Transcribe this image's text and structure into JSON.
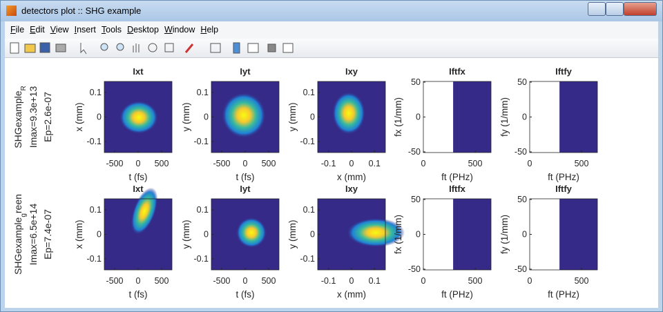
{
  "window": {
    "title": "detectors plot :: SHG example"
  },
  "menu": [
    "File",
    "Edit",
    "View",
    "Insert",
    "Tools",
    "Desktop",
    "Window",
    "Help"
  ],
  "rows": [
    {
      "label": {
        "main": "SHGexample",
        "sub": "R",
        "lines": [
          "Imax=9.3e+13",
          "Ep=2.6e-07"
        ]
      },
      "panels": [
        {
          "title": "Ixt",
          "xlabel": "t (fs)",
          "ylabel": "x (mm)",
          "xlim": [
            -720,
            720
          ],
          "ylim": [
            -0.145,
            0.145
          ],
          "xticks": [
            -500,
            0,
            500
          ],
          "yticks": [
            0.1,
            0,
            -0.1
          ]
        },
        {
          "title": "Iyt",
          "xlabel": "t (fs)",
          "ylabel": "y (mm)",
          "xlim": [
            -720,
            720
          ],
          "ylim": [
            -0.145,
            0.145
          ],
          "xticks": [
            -500,
            0,
            500
          ],
          "yticks": [
            0.1,
            0,
            -0.1
          ]
        },
        {
          "title": "Ixy",
          "xlabel": "x (mm)",
          "ylabel": "y (mm)",
          "xlim": [
            -0.147,
            0.147
          ],
          "ylim": [
            -0.145,
            0.145
          ],
          "xticks": [
            -0.1,
            0,
            0.1
          ],
          "yticks": [
            0.1,
            0,
            -0.1
          ]
        },
        {
          "title": "Iftfx",
          "xlabel": "ft (PHz)",
          "ylabel": "fx (1/mm)",
          "xlim": [
            0,
            653
          ],
          "ylim": [
            -51,
            51
          ],
          "xticks": [
            0,
            500
          ],
          "yticks": [
            50,
            0,
            -50
          ]
        },
        {
          "title": "Iftfy",
          "xlabel": "ft (PHz)",
          "ylabel": "fy (1/mm)",
          "xlim": [
            0,
            653
          ],
          "ylim": [
            -51,
            51
          ],
          "xticks": [
            0,
            500
          ],
          "yticks": [
            50,
            0,
            -50
          ]
        }
      ]
    },
    {
      "label": {
        "main": "SHGexample",
        "sub": "g",
        "rest": "reen",
        "lines": [
          "Imax=6.5e+14",
          "Ep=7.4e-07"
        ]
      },
      "panels": [
        {
          "title": "Ixt",
          "xlabel": "t (fs)",
          "ylabel": "x (mm)",
          "xlim": [
            -720,
            720
          ],
          "ylim": [
            -0.145,
            0.145
          ],
          "xticks": [
            -500,
            0,
            500
          ],
          "yticks": [
            0.1,
            0,
            -0.1
          ]
        },
        {
          "title": "Iyt",
          "xlabel": "t (fs)",
          "ylabel": "y (mm)",
          "xlim": [
            -720,
            720
          ],
          "ylim": [
            -0.145,
            0.145
          ],
          "xticks": [
            -500,
            0,
            500
          ],
          "yticks": [
            0.1,
            0,
            -0.1
          ]
        },
        {
          "title": "Ixy",
          "xlabel": "x (mm)",
          "ylabel": "y (mm)",
          "xlim": [
            -0.147,
            0.147
          ],
          "ylim": [
            -0.145,
            0.145
          ],
          "xticks": [
            -0.1,
            0,
            0.1
          ],
          "yticks": [
            0.1,
            0,
            -0.1
          ]
        },
        {
          "title": "Iftfx",
          "xlabel": "ft (PHz)",
          "ylabel": "fx (1/mm)",
          "xlim": [
            0,
            653
          ],
          "ylim": [
            -51,
            51
          ],
          "xticks": [
            0,
            500
          ],
          "yticks": [
            50,
            0,
            -50
          ]
        },
        {
          "title": "Iftfy",
          "xlabel": "ft (PHz)",
          "ylabel": "fy (1/mm)",
          "xlim": [
            0,
            653
          ],
          "ylim": [
            -51,
            51
          ],
          "xticks": [
            0,
            500
          ],
          "yticks": [
            50,
            0,
            -50
          ]
        }
      ]
    }
  ]
}
